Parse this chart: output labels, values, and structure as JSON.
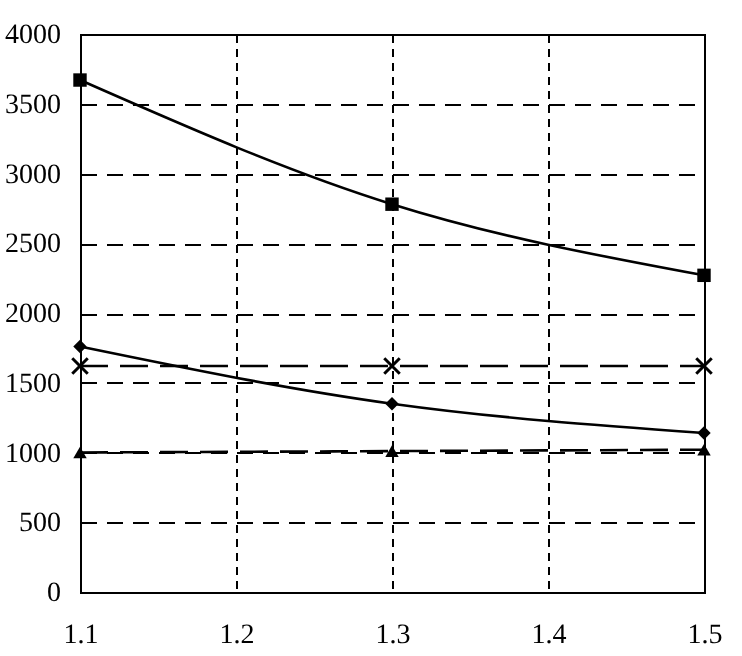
{
  "chart_data": {
    "type": "line",
    "x": [
      1.1,
      1.3,
      1.5
    ],
    "xlim": [
      1.1,
      1.5
    ],
    "xticks": [
      1.1,
      1.2,
      1.3,
      1.4,
      1.5
    ],
    "ylim": [
      0,
      4000
    ],
    "yticks": [
      0,
      500,
      1000,
      1500,
      2000,
      2500,
      3000,
      3500,
      4000
    ],
    "grid": true,
    "series": [
      {
        "color": "#000000",
        "values": [
          3670,
          2780,
          2270
        ],
        "marker": "square",
        "line_style": "solid"
      },
      {
        "color": "#000000",
        "values": [
          1760,
          1350,
          1140
        ],
        "marker": "diamond",
        "line_style": "solid"
      },
      {
        "color": "#000000",
        "values": [
          1620,
          1620,
          1620
        ],
        "marker": "cross",
        "line_style": "dashed"
      },
      {
        "color": "#000000",
        "values": [
          1000,
          1010,
          1020
        ],
        "marker": "triangle",
        "line_style": "dashed"
      }
    ]
  }
}
